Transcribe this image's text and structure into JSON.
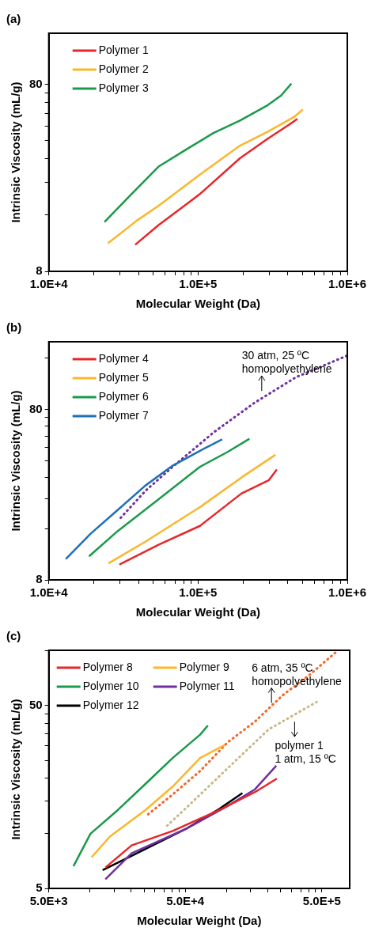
{
  "chart_data": [
    {
      "type": "line",
      "title": "(a)",
      "xlabel": "Molecular Weight (Da)",
      "ylabel": "Intrinsic Viscosity (mL/g)",
      "log": "xy",
      "legend": "top left",
      "marker": "none",
      "xlim": [
        10000,
        1000000
      ],
      "xticks": [
        {
          "value": 10000,
          "label": "1.0E+4"
        },
        {
          "value": 20000,
          "label": null
        },
        {
          "value": 30000,
          "label": null
        },
        {
          "value": 40000,
          "label": null
        },
        {
          "value": 50000,
          "label": null
        },
        {
          "value": 60000,
          "label": null
        },
        {
          "value": 70000,
          "label": null
        },
        {
          "value": 80000,
          "label": null
        },
        {
          "value": 90000,
          "label": null
        },
        {
          "value": 100000,
          "label": "1.0E+5"
        },
        {
          "value": 200000,
          "label": null
        },
        {
          "value": 300000,
          "label": null
        },
        {
          "value": 400000,
          "label": null
        },
        {
          "value": 500000,
          "label": null
        },
        {
          "value": 600000,
          "label": null
        },
        {
          "value": 700000,
          "label": null
        },
        {
          "value": 800000,
          "label": null
        },
        {
          "value": 900000,
          "label": null
        },
        {
          "value": 1000000,
          "label": "1.0E+6"
        }
      ],
      "ylim": [
        8,
        150
      ],
      "yticks": [
        8,
        {
          "value": 16,
          "label": null
        },
        {
          "value": 24,
          "label": null
        },
        {
          "value": 32,
          "label": null
        },
        {
          "value": 40,
          "label": null
        },
        {
          "value": 48,
          "label": null
        },
        {
          "value": 56,
          "label": null
        },
        {
          "value": 64,
          "label": null
        },
        {
          "value": 72,
          "label": null
        },
        80
      ],
      "series": [
        {
          "name": "Polymer 1",
          "color": "#e8262a",
          "line_style": "solid",
          "x": [
            37900,
            54200,
            102000,
            191000,
            292000,
            408000,
            463000
          ],
          "values": [
            11.1,
            14.1,
            20.6,
            32.2,
            40.9,
            48.7,
            52.3
          ]
        },
        {
          "name": "Polymer 2",
          "color": "#fbb62b",
          "line_style": "solid",
          "x": [
            24900,
            38700,
            54200,
            102000,
            191000,
            292000,
            444000,
            504000
          ],
          "values": [
            11.3,
            14.9,
            17.9,
            26.2,
            37.6,
            44.6,
            53.8,
            58.7
          ]
        },
        {
          "name": "Polymer 3",
          "color": "#1a9a4a",
          "line_style": "solid",
          "x": [
            23600,
            35600,
            54200,
            82600,
            126000,
            191000,
            292000,
            360000,
            422000
          ],
          "values": [
            14.7,
            20.6,
            29.0,
            35.7,
            43.8,
            51.2,
            61.8,
            69.7,
            80.7
          ]
        }
      ]
    },
    {
      "type": "line",
      "title": "(b)",
      "xlabel": "Molecular Weight (Da)",
      "ylabel": "Intrinsic Viscosity (mL/g)",
      "log": "xy",
      "legend": "top left",
      "marker": "none",
      "xlim": [
        10000,
        1000000
      ],
      "xticks": [
        {
          "value": 10000,
          "label": "1.0E+4"
        },
        {
          "value": 20000,
          "label": null
        },
        {
          "value": 30000,
          "label": null
        },
        {
          "value": 40000,
          "label": null
        },
        {
          "value": 50000,
          "label": null
        },
        {
          "value": 60000,
          "label": null
        },
        {
          "value": 70000,
          "label": null
        },
        {
          "value": 80000,
          "label": null
        },
        {
          "value": 90000,
          "label": null
        },
        {
          "value": 100000,
          "label": "1.0E+5"
        },
        {
          "value": 200000,
          "label": null
        },
        {
          "value": 300000,
          "label": null
        },
        {
          "value": 400000,
          "label": null
        },
        {
          "value": 500000,
          "label": null
        },
        {
          "value": 600000,
          "label": null
        },
        {
          "value": 700000,
          "label": null
        },
        {
          "value": 800000,
          "label": null
        },
        {
          "value": 900000,
          "label": null
        },
        {
          "value": 1000000,
          "label": "1.0E+6"
        }
      ],
      "ylim": [
        8,
        200
      ],
      "yticks": [
        8,
        {
          "value": 16,
          "label": null
        },
        {
          "value": 24,
          "label": null
        },
        {
          "value": 32,
          "label": null
        },
        {
          "value": 40,
          "label": null
        },
        {
          "value": 48,
          "label": null
        },
        {
          "value": 56,
          "label": null
        },
        {
          "value": 64,
          "label": null
        },
        {
          "value": 72,
          "label": null
        },
        80,
        {
          "value": 160,
          "label": null
        }
      ],
      "annotations": [
        {
          "text": "30 atm, 25 ºC\nhomopolyethylene",
          "x": 267000,
          "y": 99.7
        }
      ],
      "series": [
        {
          "name": "Polymer 4",
          "color": "#e8262a",
          "line_style": "solid",
          "x": [
            29700,
            54700,
            103000,
            195000,
            297000,
            337000
          ],
          "values": [
            9.84,
            12.9,
            16.6,
            25.7,
            30.7,
            35.6
          ]
        },
        {
          "name": "Polymer 5",
          "color": "#fbb62b",
          "line_style": "solid",
          "x": [
            25100,
            44300,
            103000,
            195000,
            330000
          ],
          "values": [
            10.0,
            13.4,
            21.4,
            31.9,
            43.4
          ]
        },
        {
          "name": "Polymer 6",
          "color": "#1a9a4a",
          "line_style": "solid",
          "x": [
            18600,
            29000,
            54700,
            103000,
            157000,
            221000
          ],
          "values": [
            11.0,
            15.5,
            23.9,
            36.9,
            45.0,
            53.9
          ]
        },
        {
          "name": "Polymer 7",
          "color": "#1f6fb8",
          "line_style": "solid",
          "x": [
            13000,
            19000,
            29000,
            44300,
            67600,
            103000,
            145000
          ],
          "values": [
            10.6,
            14.9,
            20.6,
            28.6,
            37.5,
            45.8,
            53.4
          ]
        },
        {
          "color": "#7030a0",
          "line_style": "dotted",
          "x": [
            30300,
            44300,
            67600,
            128000,
            240000,
            454000,
            1000000
          ],
          "values": [
            18.5,
            26.6,
            36.9,
            59.0,
            87.9,
            124,
            166
          ]
        }
      ]
    },
    {
      "type": "line",
      "title": "(c)",
      "xlabel": "Molecular Weight (Da)",
      "ylabel": "Intrinsic Viscosity (mL/g)",
      "log": "xy",
      "legend": "top left",
      "marker": "none",
      "xlim": [
        5000,
        800000
      ],
      "xticks": [
        {
          "value": 5000,
          "label": "5.0E+3"
        },
        {
          "value": 10000,
          "label": null
        },
        {
          "value": 15000,
          "label": null
        },
        {
          "value": 20000,
          "label": null
        },
        {
          "value": 25000,
          "label": null
        },
        {
          "value": 30000,
          "label": null
        },
        {
          "value": 35000,
          "label": null
        },
        {
          "value": 40000,
          "label": null
        },
        {
          "value": 45000,
          "label": null
        },
        {
          "value": 50000,
          "label": "5.0E+4"
        },
        {
          "value": 100000,
          "label": null
        },
        {
          "value": 150000,
          "label": null
        },
        {
          "value": 200000,
          "label": null
        },
        {
          "value": 250000,
          "label": null
        },
        {
          "value": 300000,
          "label": null
        },
        {
          "value": 350000,
          "label": null
        },
        {
          "value": 400000,
          "label": null
        },
        {
          "value": 450000,
          "label": null
        },
        {
          "value": 500000,
          "label": "5.0E+5"
        }
      ],
      "ylim": [
        5,
        100
      ],
      "yticks": [
        5,
        {
          "value": 10,
          "label": null
        },
        {
          "value": 15,
          "label": null
        },
        {
          "value": 20,
          "label": null
        },
        {
          "value": 25,
          "label": null
        },
        {
          "value": 30,
          "label": null
        },
        {
          "value": 35,
          "label": null
        },
        {
          "value": 40,
          "label": null
        },
        {
          "value": 45,
          "label": null
        },
        50,
        {
          "value": 100,
          "label": null
        }
      ],
      "annotations": [
        {
          "text": "6 atm, 35 ºC\nhomopolyethylene",
          "x": 214000,
          "y": 50
        },
        {
          "text": "polymer 1\n1 atm, 15 ºC",
          "x": 316000,
          "y": 42
        }
      ],
      "series": [
        {
          "name": "Polymer 8",
          "color": "#e8262a",
          "line_style": "solid",
          "x": [
            13000,
            20200,
            40400,
            88700,
            162000,
            234000
          ],
          "values": [
            6.5,
            8.59,
            10.3,
            13.4,
            16.8,
            19.9
          ]
        },
        {
          "name": "Polymer 9",
          "color": "#fbb62b",
          "line_style": "solid",
          "x": [
            10300,
            14000,
            25500,
            40400,
            64200,
            97300
          ],
          "values": [
            7.41,
            9.6,
            13.4,
            18.0,
            25.8,
            30.4
          ]
        },
        {
          "name": "Polymer 10",
          "color": "#1a9a4a",
          "line_style": "solid",
          "x": [
            7580,
            10100,
            16000,
            25500,
            40400,
            64200,
            73100
          ],
          "values": [
            6.61,
            9.95,
            13.4,
            18.6,
            25.8,
            34.6,
            38.8
          ]
        },
        {
          "name": "Polymer 11",
          "color": "#7030a0",
          "line_style": "solid",
          "x": [
            13000,
            20200,
            50900,
            102000,
            162000,
            232000
          ],
          "values": [
            5.61,
            7.78,
            10.6,
            14.1,
            17.4,
            23.4
          ]
        },
        {
          "name": "Polymer 12",
          "color": "#000000",
          "line_style": "solid",
          "x": [
            12400,
            20200,
            50900,
            88700,
            131000
          ],
          "values": [
            6.29,
            7.53,
            10.6,
            13.6,
            16.6
          ]
        },
        {
          "color": "#f4662a",
          "line_style": "dotted",
          "x": [
            26700,
            40400,
            64200,
            102000,
            162000,
            257000,
            408000,
            647000
          ],
          "values": [
            12.7,
            16.3,
            21.9,
            31.4,
            40.8,
            56.6,
            73.6,
            98.9
          ]
        },
        {
          "color": "#c8b98a",
          "line_style": "dotted",
          "x": [
            36800,
            50900,
            80900,
            128000,
            204000,
            324000,
            458000
          ],
          "values": [
            11.0,
            13.8,
            19.2,
            26.6,
            37.0,
            45.0,
            52.2
          ]
        }
      ]
    }
  ]
}
